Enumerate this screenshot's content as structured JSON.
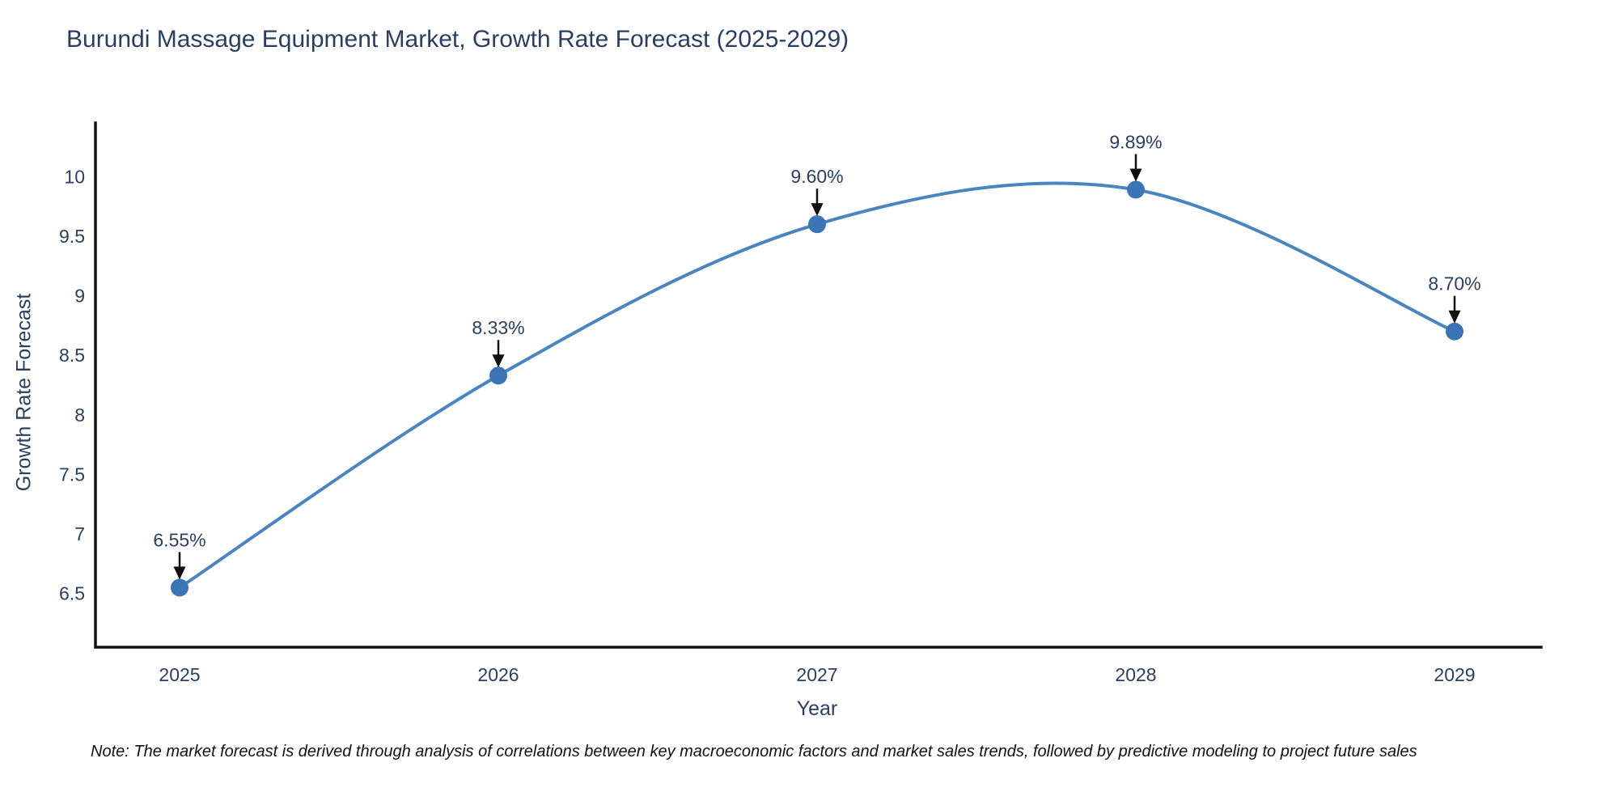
{
  "title": "Burundi Massage Equipment Market, Growth Rate Forecast (2025-2029)",
  "note": "Note: The market forecast is derived through analysis of correlations between key macroeconomic factors and market sales trends, followed by predictive modeling to project future sales",
  "chart_data": {
    "type": "line",
    "title": "Burundi Massage Equipment Market, Growth Rate Forecast (2025-2029)",
    "xlabel": "Year",
    "ylabel": "Growth Rate Forecast",
    "categories": [
      "2025",
      "2026",
      "2027",
      "2028",
      "2029"
    ],
    "values": [
      6.55,
      8.33,
      9.6,
      9.89,
      8.7
    ],
    "point_labels": [
      "6.55%",
      "8.33%",
      "9.60%",
      "9.89%",
      "8.70%"
    ],
    "yticks": [
      6.5,
      7,
      7.5,
      8,
      8.5,
      9,
      9.5,
      10
    ],
    "ylim": [
      6.05,
      10.45
    ],
    "grid": false,
    "legend": false,
    "line_shape": "spline",
    "annotations_have_arrows": true,
    "colors": {
      "line": "#4a85c0",
      "marker": "#3a74b5",
      "axis": "#111111",
      "text": "#2a3f5f",
      "annotation_arrow": "#111111",
      "background": "#ffffff"
    }
  }
}
